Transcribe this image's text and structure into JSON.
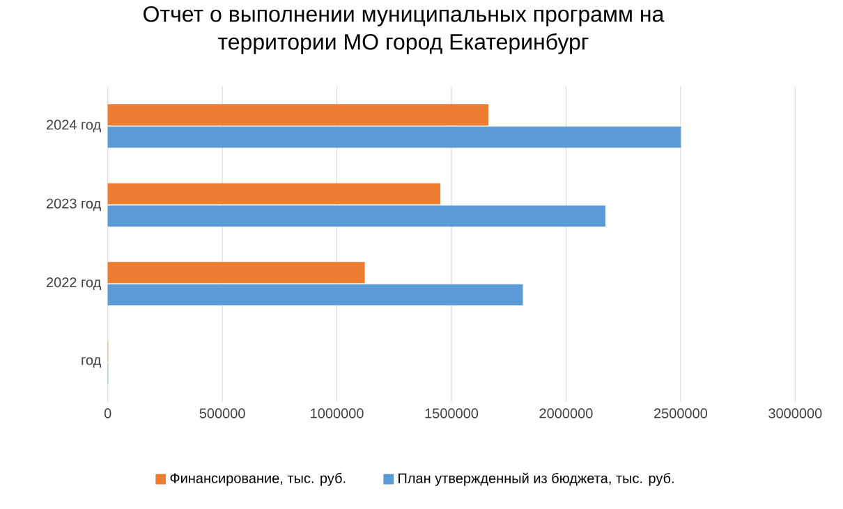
{
  "chart_data": {
    "type": "bar",
    "orientation": "horizontal",
    "title": "Отчет о выполнении муниципальных программ на территории МО город Екатеринбург",
    "categories": [
      "2024 год",
      "2023 год",
      "2022 год",
      "год"
    ],
    "series": [
      {
        "name": "Финансирование, тыс. руб.",
        "color": "#ed7d31",
        "values": [
          1660000,
          1450000,
          1120000,
          0
        ]
      },
      {
        "name": "План утвержденный из бюджета, тыс. руб.",
        "color": "#5b9bd5",
        "values": [
          2500000,
          2170000,
          1810000,
          0
        ]
      }
    ],
    "xlim": [
      0,
      3000000
    ],
    "xticks": [
      0,
      500000,
      1000000,
      1500000,
      2000000,
      2500000,
      3000000
    ],
    "grid": "x",
    "legend": "bottom"
  }
}
